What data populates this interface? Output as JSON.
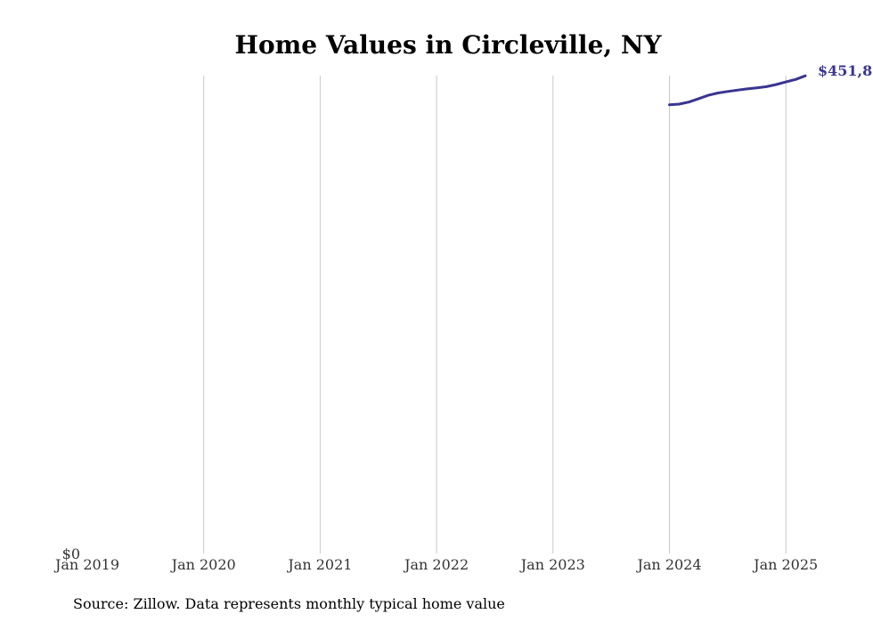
{
  "chart_data": {
    "type": "line",
    "title": "Home Values in Circleville, NY",
    "xlabel": "",
    "ylabel": "",
    "x_ticks": [
      "Jan 2019",
      "Jan 2020",
      "Jan 2021",
      "Jan 2022",
      "Jan 2023",
      "Jan 2024",
      "Jan 2025"
    ],
    "y_ticks": [
      "$0"
    ],
    "ylim": [
      0,
      452000
    ],
    "xlim": [
      "2019-01",
      "2025-03"
    ],
    "grid": "vertical",
    "series": [
      {
        "color": "#3a3591",
        "points": [
          {
            "x": "2024-01",
            "y": 424500
          },
          {
            "x": "2024-02",
            "y": 425100
          },
          {
            "x": "2024-03",
            "y": 427000
          },
          {
            "x": "2024-04",
            "y": 430200
          },
          {
            "x": "2024-05",
            "y": 433400
          },
          {
            "x": "2024-06",
            "y": 435600
          },
          {
            "x": "2024-07",
            "y": 437000
          },
          {
            "x": "2024-08",
            "y": 438300
          },
          {
            "x": "2024-09",
            "y": 439500
          },
          {
            "x": "2024-10",
            "y": 440500
          },
          {
            "x": "2024-11",
            "y": 441600
          },
          {
            "x": "2024-12",
            "y": 443600
          },
          {
            "x": "2025-01",
            "y": 446000
          },
          {
            "x": "2025-02",
            "y": 448400
          },
          {
            "x": "2025-03",
            "y": 451800
          }
        ]
      }
    ],
    "end_label": "$451,8",
    "note": "Source: Zillow. Data represents monthly typical home value"
  }
}
